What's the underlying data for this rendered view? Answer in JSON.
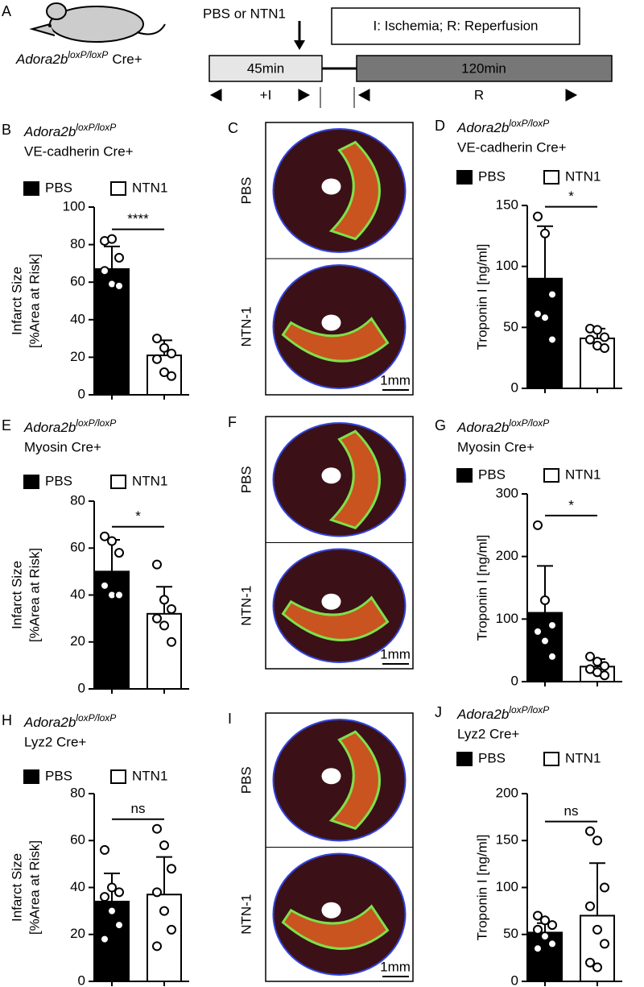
{
  "protocol": {
    "panel": "A",
    "genotype": "Adora2b",
    "genotype_sup": "loxP/loxP",
    "genotype_suffix": "Cre+",
    "injection": "PBS or NTN1",
    "legend": "I: Ischemia; R: Reperfusion",
    "phase1": "45min",
    "phase2": "120min",
    "phase1_label": "+I",
    "phase2_label": "R"
  },
  "images": [
    {
      "panel": "C",
      "rows": [
        "PBS",
        "NTN-1"
      ],
      "scale": "1mm"
    },
    {
      "panel": "F",
      "rows": [
        "PBS",
        "NTN-1"
      ],
      "scale": "1mm"
    },
    {
      "panel": "I",
      "rows": [
        "PBS",
        "NTN-1"
      ],
      "scale": "1mm"
    }
  ],
  "chart_data": [
    {
      "type": "bar",
      "panel": "B",
      "title": "Adora2b",
      "title_sup": "loxP/loxP",
      "subtitle": "VE-cadherin Cre+",
      "ylabel": [
        "Infarct Size",
        "[%Area at Risk]"
      ],
      "ylim": [
        0,
        100
      ],
      "yticks": [
        0,
        20,
        40,
        60,
        80,
        100
      ],
      "significance": "****",
      "series": [
        {
          "name": "PBS",
          "color": "#000000",
          "values": [
            67
          ],
          "errors": [
            12
          ],
          "points": [
            82,
            83,
            73,
            66,
            59,
            58
          ]
        },
        {
          "name": "NTN1",
          "color": "#ffffff",
          "values": [
            21
          ],
          "errors": [
            8
          ],
          "points": [
            30,
            25,
            22,
            19,
            12,
            10
          ]
        }
      ]
    },
    {
      "type": "bar",
      "panel": "D",
      "title": "Adora2b",
      "title_sup": "loxP/loxP",
      "subtitle": "VE-cadherin Cre+",
      "ylabel": [
        "Troponin I [ng/ml]"
      ],
      "ylim": [
        0,
        150
      ],
      "yticks": [
        0,
        50,
        100,
        150
      ],
      "significance": "*",
      "series": [
        {
          "name": "PBS",
          "color": "#000000",
          "values": [
            90
          ],
          "errors": [
            43
          ],
          "points": [
            141,
            127,
            77,
            61,
            58,
            40
          ]
        },
        {
          "name": "NTN1",
          "color": "#ffffff",
          "values": [
            41
          ],
          "errors": [
            8
          ],
          "points": [
            49,
            48,
            42,
            40,
            35,
            33
          ]
        }
      ]
    },
    {
      "type": "bar",
      "panel": "E",
      "title": "Adora2b",
      "title_sup": "loxP/loxP",
      "subtitle": "Myosin Cre+",
      "ylabel": [
        "Infarct Size",
        "[%Area at Risk]"
      ],
      "ylim": [
        0,
        80
      ],
      "yticks": [
        0,
        20,
        40,
        60,
        80
      ],
      "significance": "*",
      "series": [
        {
          "name": "PBS",
          "color": "#000000",
          "values": [
            50
          ],
          "errors": [
            13.5
          ],
          "points": [
            65,
            63,
            58,
            44,
            40,
            40
          ]
        },
        {
          "name": "NTN1",
          "color": "#ffffff",
          "values": [
            32
          ],
          "errors": [
            11.5
          ],
          "points": [
            53,
            38,
            34,
            30,
            27,
            20
          ]
        }
      ]
    },
    {
      "type": "bar",
      "panel": "G",
      "title": "Adora2b",
      "title_sup": "loxP/loxP",
      "subtitle": "Myosin Cre+",
      "ylabel": [
        "Troponin I [ng/ml]"
      ],
      "ylim": [
        0,
        300
      ],
      "yticks": [
        0,
        100,
        200,
        300
      ],
      "significance": "*",
      "series": [
        {
          "name": "PBS",
          "color": "#000000",
          "values": [
            110
          ],
          "errors": [
            75
          ],
          "points": [
            250,
            130,
            90,
            80,
            65,
            40
          ]
        },
        {
          "name": "NTN1",
          "color": "#ffffff",
          "values": [
            24
          ],
          "errors": [
            12
          ],
          "points": [
            40,
            32,
            25,
            20,
            15,
            10
          ]
        }
      ]
    },
    {
      "type": "bar",
      "panel": "H",
      "title": "Adora2b",
      "title_sup": "loxP/loxP",
      "subtitle": "Lyz2 Cre+",
      "ylabel": [
        "Infarct Size",
        "[%Area at Risk]"
      ],
      "ylim": [
        0,
        80
      ],
      "yticks": [
        0,
        20,
        40,
        60,
        80
      ],
      "significance": "ns",
      "series": [
        {
          "name": "PBS",
          "color": "#000000",
          "values": [
            34
          ],
          "errors": [
            12
          ],
          "points": [
            56,
            40,
            38,
            36,
            30,
            24,
            18
          ]
        },
        {
          "name": "NTN1",
          "color": "#ffffff",
          "values": [
            37
          ],
          "errors": [
            16
          ],
          "points": [
            65,
            58,
            48,
            38,
            30,
            22,
            15
          ]
        }
      ]
    },
    {
      "type": "bar",
      "panel": "J",
      "title": "Adora2b",
      "title_sup": "loxP/loxP",
      "subtitle": "Lyz2 Cre+",
      "ylabel": [
        "Troponin I [ng/ml]"
      ],
      "ylim": [
        0,
        200
      ],
      "yticks": [
        0,
        50,
        100,
        150,
        200
      ],
      "significance": "ns",
      "series": [
        {
          "name": "PBS",
          "color": "#000000",
          "values": [
            52
          ],
          "errors": [
            10
          ],
          "points": [
            70,
            65,
            60,
            55,
            48,
            40,
            35
          ]
        },
        {
          "name": "NTN1",
          "color": "#ffffff",
          "values": [
            70
          ],
          "errors": [
            56
          ],
          "points": [
            160,
            150,
            100,
            80,
            55,
            40,
            20,
            15
          ]
        }
      ]
    }
  ]
}
